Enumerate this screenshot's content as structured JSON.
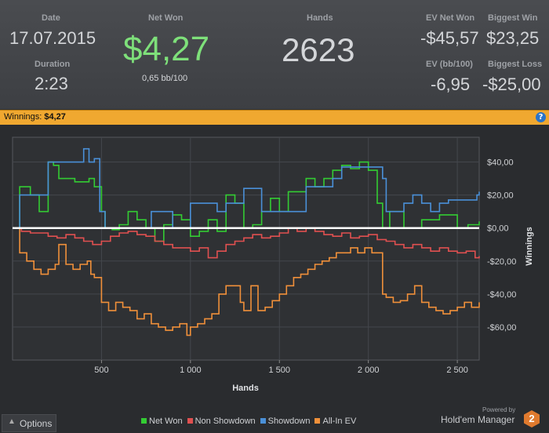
{
  "stats": {
    "date_label": "Date",
    "date_value": "17.07.2015",
    "duration_label": "Duration",
    "duration_value": "2:23",
    "net_won_label": "Net Won",
    "net_won_value": "$4,27",
    "bb_per_100": "0,65 bb/100",
    "hands_label": "Hands",
    "hands_value": "2623",
    "ev_net_won_label": "EV Net Won",
    "ev_net_won_value": "-$45,57",
    "biggest_win_label": "Biggest Win",
    "biggest_win_value": "$23,25",
    "ev_bb_label": "EV (bb/100)",
    "ev_bb_value": "-6,95",
    "biggest_loss_label": "Biggest Loss",
    "biggest_loss_value": "-$25,00",
    "net_won_color": "#7ee07a"
  },
  "banner": {
    "label": "Winnings:",
    "value": "$4,27",
    "help_icon": "question-icon",
    "help_text": "?"
  },
  "footer": {
    "options_label": "Options",
    "options_icon": "chevron-up-icon",
    "powered_by": "Powered by",
    "brand": "Hold'em Manager",
    "brand_logo_text": "2"
  },
  "chart_data": {
    "type": "line",
    "xlabel": "Hands",
    "ylabel": "Winnings",
    "xlim": [
      0,
      2623
    ],
    "ylim": [
      -80,
      55
    ],
    "x_ticks": [
      500,
      1000,
      1500,
      2000,
      2500
    ],
    "x_tick_labels": [
      "500",
      "1 000",
      "1 500",
      "2 000",
      "2 500"
    ],
    "y_ticks": [
      40,
      20,
      0,
      -20,
      -40,
      -60
    ],
    "y_tick_labels": [
      "$40,00",
      "$20,00",
      "$0,00",
      "-$20,00",
      "-$40,00",
      "-$60,00"
    ],
    "grid": true,
    "zero_line": true,
    "legend_position": "bottom",
    "series": [
      {
        "name": "Net Won",
        "color": "#33cc33",
        "x": [
          0,
          40,
          100,
          150,
          200,
          230,
          260,
          300,
          350,
          400,
          430,
          460,
          500,
          520,
          560,
          600,
          650,
          700,
          750,
          800,
          850,
          900,
          950,
          1000,
          1050,
          1100,
          1150,
          1200,
          1250,
          1300,
          1350,
          1400,
          1450,
          1500,
          1550,
          1600,
          1650,
          1700,
          1750,
          1800,
          1850,
          1900,
          1950,
          2000,
          2050,
          2080,
          2120,
          2200,
          2300,
          2400,
          2500,
          2560,
          2623
        ],
        "y": [
          0,
          25,
          20,
          10,
          40,
          38,
          30,
          30,
          28,
          28,
          30,
          25,
          10,
          0,
          -1,
          2,
          10,
          5,
          0,
          -8,
          2,
          8,
          5,
          -5,
          -2,
          5,
          -2,
          20,
          15,
          0,
          2,
          10,
          18,
          10,
          22,
          22,
          30,
          25,
          30,
          35,
          38,
          36,
          40,
          35,
          15,
          0,
          10,
          0,
          5,
          8,
          0,
          2,
          4
        ]
      },
      {
        "name": "Non Showdown",
        "color": "#e05050",
        "x": [
          0,
          50,
          100,
          150,
          200,
          250,
          300,
          350,
          400,
          450,
          500,
          550,
          600,
          650,
          700,
          750,
          800,
          850,
          900,
          950,
          1000,
          1050,
          1100,
          1150,
          1200,
          1250,
          1300,
          1350,
          1400,
          1450,
          1500,
          1550,
          1600,
          1650,
          1700,
          1750,
          1800,
          1850,
          1900,
          1950,
          2000,
          2050,
          2100,
          2150,
          2200,
          2250,
          2300,
          2350,
          2400,
          2450,
          2500,
          2550,
          2600,
          2623
        ],
        "y": [
          0,
          -2,
          -3,
          -3,
          -5,
          -6,
          -4,
          -6,
          -8,
          -10,
          -8,
          -5,
          -3,
          -2,
          -4,
          -5,
          -8,
          -10,
          -12,
          -12,
          -14,
          -12,
          -18,
          -14,
          -10,
          -8,
          -6,
          -4,
          -6,
          -5,
          -3,
          0,
          -2,
          0,
          -2,
          -4,
          -5,
          -3,
          -6,
          -5,
          -4,
          -7,
          -8,
          -10,
          -12,
          -10,
          -12,
          -14,
          -12,
          -14,
          -15,
          -14,
          -18,
          -17
        ]
      },
      {
        "name": "Showdown",
        "color": "#4a90d8",
        "x": [
          0,
          40,
          100,
          180,
          200,
          300,
          350,
          400,
          430,
          460,
          490,
          520,
          600,
          700,
          780,
          850,
          900,
          1000,
          1050,
          1100,
          1150,
          1200,
          1250,
          1300,
          1350,
          1400,
          1450,
          1500,
          1550,
          1600,
          1650,
          1700,
          1750,
          1800,
          1850,
          1900,
          1950,
          2000,
          2050,
          2080,
          2100,
          2200,
          2250,
          2300,
          2350,
          2400,
          2450,
          2500,
          2560,
          2610,
          2623
        ],
        "y": [
          0,
          20,
          20,
          20,
          40,
          40,
          40,
          48,
          40,
          42,
          10,
          0,
          0,
          0,
          10,
          10,
          0,
          15,
          15,
          15,
          10,
          15,
          15,
          24,
          24,
          10,
          10,
          10,
          10,
          10,
          25,
          25,
          25,
          30,
          37,
          37,
          37,
          37,
          37,
          30,
          10,
          15,
          20,
          15,
          10,
          15,
          17,
          17,
          17,
          20,
          22
        ]
      },
      {
        "name": "All-In EV",
        "color": "#f0903a",
        "x": [
          0,
          40,
          80,
          120,
          160,
          200,
          240,
          260,
          300,
          340,
          380,
          420,
          440,
          460,
          500,
          540,
          580,
          620,
          660,
          700,
          740,
          780,
          820,
          860,
          900,
          940,
          980,
          1000,
          1040,
          1080,
          1120,
          1160,
          1200,
          1240,
          1280,
          1300,
          1340,
          1380,
          1420,
          1460,
          1500,
          1540,
          1580,
          1620,
          1660,
          1700,
          1740,
          1780,
          1820,
          1860,
          1900,
          1940,
          1980,
          2020,
          2060,
          2080,
          2100,
          2140,
          2180,
          2220,
          2260,
          2300,
          2340,
          2380,
          2420,
          2460,
          2500,
          2540,
          2580,
          2623
        ],
        "y": [
          0,
          -15,
          -20,
          -25,
          -28,
          -25,
          -22,
          -10,
          -22,
          -25,
          -22,
          -20,
          -28,
          -30,
          -45,
          -50,
          -45,
          -48,
          -50,
          -55,
          -52,
          -58,
          -60,
          -62,
          -60,
          -58,
          -65,
          -60,
          -58,
          -55,
          -52,
          -40,
          -35,
          -35,
          -45,
          -50,
          -35,
          -50,
          -48,
          -44,
          -40,
          -35,
          -30,
          -28,
          -25,
          -22,
          -20,
          -18,
          -15,
          -15,
          -12,
          -15,
          -12,
          -15,
          -15,
          -40,
          -42,
          -45,
          -44,
          -40,
          -35,
          -45,
          -48,
          -50,
          -52,
          -50,
          -48,
          -45,
          -48,
          -45
        ]
      }
    ]
  }
}
